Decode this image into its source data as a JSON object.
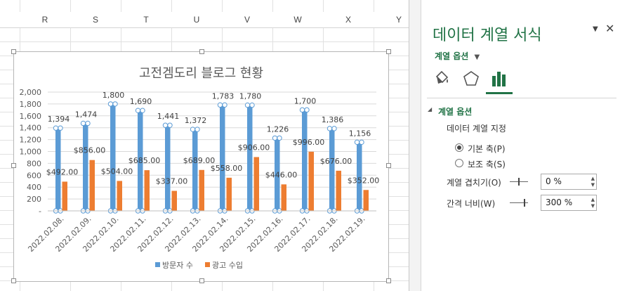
{
  "sheet": {
    "columns": [
      "R",
      "S",
      "T",
      "U",
      "V",
      "W",
      "X",
      "Y"
    ]
  },
  "chart_data": {
    "type": "bar",
    "title": "고전겜도리 블로그 현황",
    "categories": [
      "2022.02.08.",
      "2022.02.09.",
      "2022.02.10.",
      "2022.02.11.",
      "2022.02.12.",
      "2022.02.13.",
      "2022.02.14.",
      "2022.02.15.",
      "2022.02.16.",
      "2022.02.17.",
      "2022.02.18.",
      "2022.02.19."
    ],
    "series": [
      {
        "name": "방문자 수",
        "color": "#5b9bd5",
        "values": [
          1394,
          1474,
          1800,
          1690,
          1441,
          1372,
          1783,
          1780,
          1226,
          1700,
          1386,
          1156
        ],
        "labels": [
          "1,394",
          "1,474",
          "1,800",
          "1,690",
          "1,441",
          "1,372",
          "1,783",
          "1,780",
          "1,226",
          "1,700",
          "1,386",
          "1,156"
        ]
      },
      {
        "name": "광고 수입",
        "color": "#ed7d31",
        "values": [
          492,
          856,
          504,
          685,
          337,
          689,
          558,
          906,
          446,
          996,
          676,
          352
        ],
        "labels": [
          "$492.00",
          "$856.00",
          "$504.00",
          "$685.00",
          "$337.00",
          "$689.00",
          "$558.00",
          "$906.00",
          "$446.00",
          "$996.00",
          "$676.00",
          "$352.00"
        ]
      }
    ],
    "yticks": [
      "2,000",
      "1,800",
      "1,600",
      "1,400",
      "1,200",
      "1,000",
      "800",
      "600",
      "400",
      "200",
      "-"
    ],
    "ylim": [
      0,
      2000
    ],
    "grid": true,
    "legend": "bottom"
  },
  "panel": {
    "title": "데이터 계열 서식",
    "options_menu": "계열 옵션",
    "section": "계열 옵션",
    "plot_on_label": "데이터 계열 지정",
    "primary_axis": "기본 축(P)",
    "secondary_axis": "보조 축(S)",
    "overlap_label": "계열 겹치기(O)",
    "overlap_value": "0 %",
    "gap_label": "간격 너비(W)",
    "gap_value": "300 %",
    "colors": {
      "accent": "#217346"
    }
  }
}
